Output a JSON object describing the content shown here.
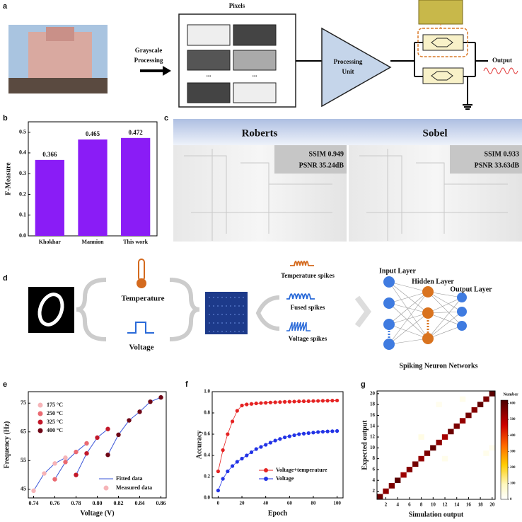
{
  "panel_labels": [
    "a",
    "b",
    "c",
    "d",
    "e",
    "f",
    "g"
  ],
  "diagram_a": {
    "pixels_title": "Pixels",
    "grayscale_lines": [
      "Grayscale",
      "Processing"
    ],
    "pixel_ellipsis": "...",
    "processing_lines": [
      "Processing",
      "Unit"
    ],
    "output": "Output"
  },
  "edge_detection": {
    "methods": [
      {
        "name": "Roberts",
        "ssim": "SSIM 0.949",
        "psnr": "PSNR 35.24dB"
      },
      {
        "name": "Sobel",
        "ssim": "SSIM 0.933",
        "psnr": "PSNR 33.63dB"
      }
    ]
  },
  "snn_diagram": {
    "temperature": "Temperature",
    "voltage": "Voltage",
    "temperature_spikes": "Temperature spikes",
    "fused_spikes": "Fused spikes",
    "voltage_spikes": "Voltage spikes",
    "input_layer": "Input Layer",
    "hidden_layer": "Hidden Layer",
    "output_layer": "Output Layer",
    "network_title": "Spiking Neuron Networks"
  },
  "chart_data": [
    {
      "type": "bar",
      "ylabel": "F-Measure",
      "categories": [
        "Khokhar",
        "Mannion",
        "This work"
      ],
      "values": [
        0.366,
        0.465,
        0.472
      ],
      "color": "#8a1cf6",
      "ylim": [
        0,
        0.55
      ],
      "yticks": [
        {
          "value": 0,
          "label": "0.0"
        },
        0.1,
        0.2,
        0.3,
        0.4,
        0.5
      ]
    },
    {
      "type": "line",
      "xlabel": "Voltage (V)",
      "ylabel": "Frequency (Hz)",
      "fit_color": "#3a55d8",
      "fitted_label": "Fitted data",
      "measured_label": "Measured data",
      "series": [
        {
          "name": "175 °C",
          "color": "#f6b4b8",
          "x": [
            0.74,
            0.75,
            0.76,
            0.77
          ],
          "values": [
            44.5,
            50.5,
            54,
            56
          ]
        },
        {
          "name": "250 °C",
          "color": "#ea6a72",
          "x": [
            0.76,
            0.77,
            0.78,
            0.79
          ],
          "values": [
            48.5,
            54.5,
            58,
            61
          ]
        },
        {
          "name": "325 °C",
          "color": "#c2182a",
          "x": [
            0.78,
            0.79,
            0.8,
            0.81
          ],
          "values": [
            50,
            57.5,
            63,
            66
          ]
        },
        {
          "name": "400 °C",
          "color": "#6e0616",
          "x": [
            0.81,
            0.82,
            0.83,
            0.84,
            0.85,
            0.86
          ],
          "values": [
            57,
            64,
            69,
            72,
            75.5,
            77
          ]
        }
      ],
      "xlim": [
        0.735,
        0.865
      ],
      "xticks": [
        0.74,
        0.76,
        0.78,
        {
          "value": 0.8,
          "label": "0.80"
        },
        0.82,
        0.84,
        0.86
      ],
      "ylim": [
        42,
        79
      ],
      "yticks": [
        45,
        55,
        65,
        75
      ]
    },
    {
      "type": "scatter-line",
      "xlabel": "Epoch",
      "ylabel": "Accuracy",
      "x": [
        0,
        4,
        8,
        12,
        16,
        20,
        24,
        28,
        32,
        36,
        40,
        44,
        48,
        52,
        56,
        60,
        64,
        68,
        72,
        76,
        80,
        84,
        88,
        92,
        96,
        100
      ],
      "series": [
        {
          "name": "Voltage+temperature",
          "color": "#e52222",
          "values": [
            0.25,
            0.45,
            0.6,
            0.72,
            0.82,
            0.87,
            0.88,
            0.885,
            0.89,
            0.893,
            0.895,
            0.898,
            0.9,
            0.902,
            0.904,
            0.906,
            0.907,
            0.909,
            0.91,
            0.911,
            0.912,
            0.913,
            0.914,
            0.915,
            0.916,
            0.917
          ]
        },
        {
          "name": "Voltage",
          "color": "#2233e6",
          "values": [
            0.07,
            0.18,
            0.25,
            0.3,
            0.34,
            0.37,
            0.4,
            0.43,
            0.46,
            0.48,
            0.5,
            0.52,
            0.54,
            0.555,
            0.57,
            0.58,
            0.59,
            0.6,
            0.605,
            0.61,
            0.615,
            0.62,
            0.623,
            0.626,
            0.628,
            0.63
          ]
        }
      ],
      "xlim": [
        -5,
        105
      ],
      "xticks": [
        0,
        20,
        40,
        60,
        80,
        100
      ],
      "ylim": [
        0,
        1
      ],
      "yticks": [
        {
          "value": 0,
          "label": "0.0"
        },
        0.2,
        0.4,
        0.6,
        0.8,
        {
          "value": 1,
          "label": "1.0"
        }
      ]
    },
    {
      "type": "heatmap",
      "xlabel": "Simulation output",
      "ylabel": "Expected output",
      "colorbar_title": "Number",
      "cells": [
        {
          "x": 1,
          "y": 1,
          "value": 580
        },
        {
          "x": 2,
          "y": 2,
          "value": 540
        },
        {
          "x": 3,
          "y": 3,
          "value": 560
        },
        {
          "x": 4,
          "y": 4,
          "value": 600
        },
        {
          "x": 5,
          "y": 5,
          "value": 520
        },
        {
          "x": 6,
          "y": 6,
          "value": 550
        },
        {
          "x": 7,
          "y": 7,
          "value": 570
        },
        {
          "x": 8,
          "y": 8,
          "value": 530
        },
        {
          "x": 9,
          "y": 9,
          "value": 560
        },
        {
          "x": 10,
          "y": 10,
          "value": 590
        },
        {
          "x": 11,
          "y": 11,
          "value": 540
        },
        {
          "x": 12,
          "y": 12,
          "value": 510
        },
        {
          "x": 13,
          "y": 13,
          "value": 580
        },
        {
          "x": 14,
          "y": 14,
          "value": 560
        },
        {
          "x": 15,
          "y": 15,
          "value": 530
        },
        {
          "x": 16,
          "y": 16,
          "value": 570
        },
        {
          "x": 17,
          "y": 17,
          "value": 550
        },
        {
          "x": 18,
          "y": 18,
          "value": 590
        },
        {
          "x": 19,
          "y": 19,
          "value": 560
        },
        {
          "x": 20,
          "y": 20,
          "value": 600
        },
        {
          "x": 8,
          "y": 12,
          "value": 40
        },
        {
          "x": 12,
          "y": 8,
          "value": 30
        },
        {
          "x": 11,
          "y": 18,
          "value": 25
        },
        {
          "x": 15,
          "y": 19,
          "value": 30
        },
        {
          "x": 19,
          "y": 9,
          "value": 30
        },
        {
          "x": 20,
          "y": 10,
          "value": 25
        }
      ],
      "xlim": [
        0.5,
        20.5
      ],
      "xticks": [
        2,
        4,
        6,
        8,
        10,
        12,
        14,
        16,
        18,
        20
      ],
      "ylim": [
        0.5,
        20.5
      ],
      "yticks": [
        2,
        4,
        6,
        8,
        10,
        12,
        14,
        16,
        18,
        20
      ],
      "clim": [
        0,
        620
      ],
      "cticks": [
        0,
        100,
        200,
        300,
        400,
        500,
        600
      ]
    }
  ]
}
